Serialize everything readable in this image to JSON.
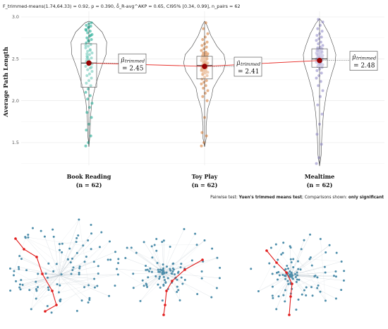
{
  "stats_line": "F_trimmed-means(1.74,64.33) = 0.92, p = 0.390, δ̂_R-avg^AKP = 0.65, CI95% [0.34, 0.99], n_pairs = 62",
  "footnote": {
    "prefix": "Pairwise test: ",
    "test": "Yuen's trimmed means test",
    "middle": "; Comparisons shown: ",
    "shown": "only significant"
  },
  "colors": {
    "book": "#11a58c",
    "toy": "#d4742c",
    "meal": "#8b84c4",
    "center": "#990000",
    "line": "#e8302b",
    "node": "#4e8eab",
    "path": "#e11b1b"
  },
  "chart_data": {
    "type": "violin",
    "title": "",
    "ylabel": "Average Path Length",
    "ylim": [
      1.2,
      3.0
    ],
    "yticks": [
      "1.5",
      "2.0",
      "2.5",
      "3.0"
    ],
    "groups": [
      {
        "category": "Book Reading",
        "n_label": "(n = 62)",
        "trimmed_mean": 2.45,
        "mean_label": "= 2.45",
        "box": {
          "q1": 2.16,
          "median": 2.45,
          "q3": 2.68,
          "min": 1.46,
          "max": 2.93
        },
        "points": [
          1.46,
          1.5,
          1.58,
          1.65,
          1.72,
          1.8,
          1.86,
          1.92,
          1.97,
          2.02,
          2.06,
          2.1,
          2.14,
          2.18,
          2.21,
          2.24,
          2.27,
          2.3,
          2.32,
          2.35,
          2.37,
          2.39,
          2.41,
          2.43,
          2.45,
          2.47,
          2.49,
          2.51,
          2.53,
          2.55,
          2.57,
          2.59,
          2.61,
          2.63,
          2.65,
          2.67,
          2.69,
          2.71,
          2.73,
          2.75,
          2.77,
          2.79,
          2.81,
          2.83,
          2.85,
          2.87,
          2.89,
          2.9,
          2.92,
          2.93,
          2.5,
          2.46,
          2.44,
          2.52,
          2.6,
          2.66,
          2.72,
          2.78,
          2.84,
          2.88,
          2.4,
          2.56
        ]
      },
      {
        "category": "Toy Play",
        "n_label": "(n = 62)",
        "trimmed_mean": 2.41,
        "mean_label": "= 2.41",
        "box": {
          "q1": 2.26,
          "median": 2.42,
          "q3": 2.53,
          "min": 1.46,
          "max": 2.93
        },
        "points": [
          1.46,
          1.5,
          1.58,
          1.62,
          1.8,
          2.0,
          2.05,
          2.09,
          2.12,
          2.15,
          2.18,
          2.2,
          2.22,
          2.24,
          2.26,
          2.28,
          2.3,
          2.31,
          2.33,
          2.34,
          2.35,
          2.36,
          2.37,
          2.38,
          2.39,
          2.4,
          2.41,
          2.42,
          2.43,
          2.44,
          2.45,
          2.46,
          2.47,
          2.48,
          2.49,
          2.5,
          2.51,
          2.52,
          2.53,
          2.54,
          2.55,
          2.56,
          2.57,
          2.58,
          2.6,
          2.62,
          2.64,
          2.66,
          2.68,
          2.7,
          2.73,
          2.76,
          2.8,
          2.86,
          2.93,
          2.36,
          2.42,
          2.44,
          2.38,
          2.46,
          2.5,
          2.32
        ]
      },
      {
        "category": "Mealtime",
        "n_label": "(n = 62)",
        "trimmed_mean": 2.48,
        "mean_label": "= 2.48",
        "box": {
          "q1": 2.4,
          "median": 2.5,
          "q3": 2.62,
          "min": 1.25,
          "max": 2.97
        },
        "points": [
          1.25,
          1.32,
          1.48,
          1.6,
          1.72,
          1.84,
          1.95,
          2.05,
          2.12,
          2.18,
          2.23,
          2.27,
          2.3,
          2.33,
          2.36,
          2.38,
          2.4,
          2.41,
          2.42,
          2.43,
          2.44,
          2.45,
          2.46,
          2.47,
          2.48,
          2.49,
          2.5,
          2.51,
          2.52,
          2.53,
          2.54,
          2.55,
          2.56,
          2.57,
          2.58,
          2.59,
          2.6,
          2.61,
          2.62,
          2.63,
          2.64,
          2.66,
          2.68,
          2.7,
          2.72,
          2.74,
          2.76,
          2.78,
          2.8,
          2.83,
          2.86,
          2.9,
          2.94,
          2.97,
          2.46,
          2.5,
          2.52,
          2.48,
          2.55,
          2.44,
          2.58,
          2.6
        ]
      }
    ]
  }
}
